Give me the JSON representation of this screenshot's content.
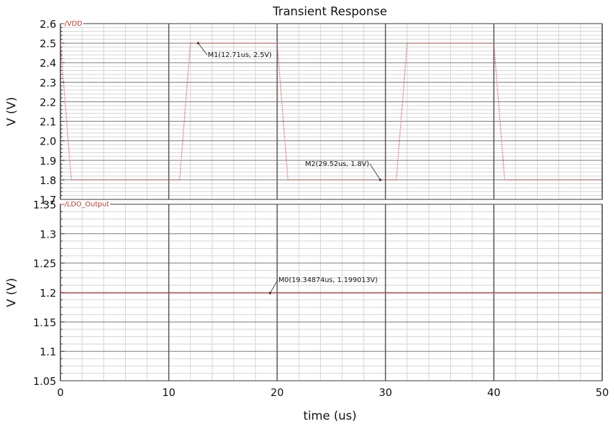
{
  "chart_data": [
    {
      "type": "line",
      "title": "Transient Response",
      "ylabel": "V (V)",
      "xlim": [
        0,
        50
      ],
      "ylim": [
        1.7,
        2.6
      ],
      "yticks": [
        "2.6",
        "2.5",
        "2.4",
        "2.3",
        "2.2",
        "2.1",
        "2.0",
        "1.9",
        "1.8",
        "1.7"
      ],
      "grid": true,
      "series": [
        {
          "name": "/VDD",
          "color": "#d9534f",
          "style": "dotted",
          "x": [
            0,
            1,
            11,
            12,
            20,
            21,
            31,
            32,
            40,
            41,
            50
          ],
          "y": [
            2.5,
            1.8,
            1.8,
            2.5,
            2.5,
            1.8,
            1.8,
            2.5,
            2.5,
            1.8,
            1.8
          ]
        }
      ],
      "markers": [
        {
          "label": "M1(12.71us, 2.5V)",
          "x": 12.71,
          "y": 2.5
        },
        {
          "label": "M2(29.52us, 1.8V)",
          "x": 29.52,
          "y": 1.8
        }
      ]
    },
    {
      "type": "line",
      "ylabel": "V (V)",
      "xlabel": "time (us)",
      "xlim": [
        0,
        50
      ],
      "ylim": [
        1.05,
        1.35
      ],
      "yticks": [
        "1.35",
        "1.3",
        "1.25",
        "1.2",
        "1.15",
        "1.1",
        "1.05"
      ],
      "xticks": [
        "0",
        "10",
        "20",
        "30",
        "40",
        "50"
      ],
      "grid": true,
      "series": [
        {
          "name": "/LDO_Output",
          "color": "#d9534f",
          "style": "solid",
          "x": [
            0,
            50
          ],
          "y": [
            1.199013,
            1.199013
          ]
        }
      ],
      "markers": [
        {
          "label": "M0(19.34874us, 1.199013V)",
          "x": 19.34874,
          "y": 1.199013
        }
      ]
    }
  ]
}
